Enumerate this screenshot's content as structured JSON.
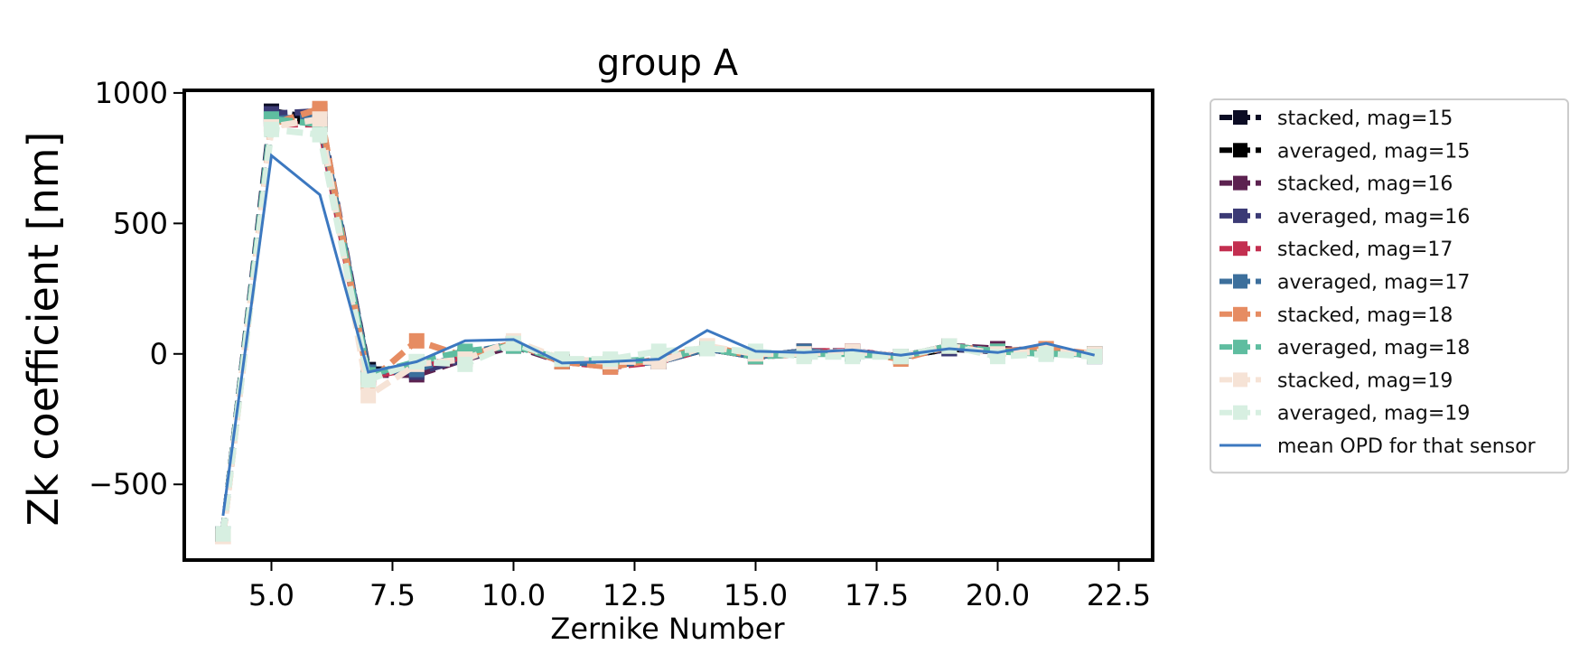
{
  "chart_data": {
    "type": "line",
    "title": "group A",
    "xlabel": "Zernike Number",
    "ylabel": "Zk coefficient [nm]",
    "xlim": [
      3.2,
      23.2
    ],
    "ylim": [
      -790,
      1010
    ],
    "xticks": [
      5.0,
      7.5,
      10.0,
      12.5,
      15.0,
      17.5,
      20.0,
      22.5
    ],
    "xtick_labels": [
      "5.0",
      "7.5",
      "10.0",
      "12.5",
      "15.0",
      "17.5",
      "20.0",
      "22.5"
    ],
    "yticks": [
      1000,
      500,
      0,
      -500
    ],
    "ytick_labels": [
      "1000",
      "500",
      "0",
      "−500"
    ],
    "grid": false,
    "legend_position": "outside-right",
    "x": [
      4,
      5,
      6,
      7,
      8,
      9,
      10,
      11,
      12,
      13,
      14,
      15,
      16,
      17,
      18,
      19,
      20,
      21,
      22
    ],
    "series": [
      {
        "name": "stacked, mag=15",
        "color": "#0b0c24",
        "style": "dashed-square",
        "values": [
          -690,
          930,
          900,
          -60,
          -60,
          -10,
          40,
          -30,
          -40,
          -30,
          20,
          -10,
          10,
          0,
          -10,
          20,
          10,
          10,
          0
        ]
      },
      {
        "name": "averaged, mag=15",
        "color": "#000000",
        "style": "dashed-square",
        "values": [
          -690,
          910,
          880,
          -70,
          -60,
          -10,
          40,
          -30,
          -40,
          -30,
          20,
          -10,
          10,
          0,
          -10,
          20,
          10,
          10,
          0
        ]
      },
      {
        "name": "stacked, mag=16",
        "color": "#5c2250",
        "style": "dashed-square",
        "values": [
          -690,
          900,
          890,
          -80,
          -80,
          -20,
          30,
          -30,
          -40,
          -30,
          20,
          -10,
          10,
          10,
          -10,
          30,
          20,
          10,
          0
        ]
      },
      {
        "name": "averaged, mag=16",
        "color": "#3b3a75",
        "style": "dashed-square",
        "values": [
          -690,
          920,
          930,
          -70,
          -70,
          -20,
          40,
          -30,
          -40,
          -30,
          20,
          -10,
          0,
          10,
          -10,
          20,
          10,
          20,
          -10
        ]
      },
      {
        "name": "stacked, mag=17",
        "color": "#c32f50",
        "style": "dashed-square",
        "values": [
          -690,
          880,
          880,
          -90,
          -50,
          -10,
          40,
          -30,
          -50,
          -30,
          20,
          -10,
          10,
          10,
          -10,
          30,
          10,
          10,
          0
        ]
      },
      {
        "name": "averaged, mag=17",
        "color": "#3c6f9c",
        "style": "dashed-square",
        "values": [
          -690,
          900,
          910,
          -70,
          -60,
          0,
          40,
          -30,
          -40,
          -30,
          20,
          -10,
          10,
          0,
          -10,
          30,
          10,
          10,
          0
        ]
      },
      {
        "name": "stacked, mag=18",
        "color": "#e68c62",
        "style": "dashed-square",
        "values": [
          -700,
          880,
          940,
          -110,
          50,
          -10,
          40,
          -30,
          -50,
          -20,
          30,
          -10,
          0,
          10,
          -20,
          30,
          10,
          20,
          0
        ]
      },
      {
        "name": "averaged, mag=18",
        "color": "#5fbda0",
        "style": "dashed-square",
        "values": [
          -690,
          900,
          880,
          -80,
          -30,
          10,
          30,
          -20,
          -30,
          -20,
          20,
          -10,
          0,
          0,
          -10,
          30,
          10,
          0,
          0
        ]
      },
      {
        "name": "stacked, mag=19",
        "color": "#f6e3d6",
        "style": "dashed-square",
        "values": [
          -700,
          870,
          900,
          -160,
          -40,
          -20,
          50,
          -20,
          -30,
          -30,
          30,
          0,
          0,
          10,
          -10,
          30,
          0,
          10,
          0
        ]
      },
      {
        "name": "averaged, mag=19",
        "color": "#d7efe1",
        "style": "dashed-square",
        "values": [
          -690,
          860,
          840,
          -100,
          -30,
          -40,
          40,
          -20,
          -20,
          10,
          20,
          10,
          -10,
          -10,
          -10,
          30,
          -10,
          0,
          -10
        ]
      },
      {
        "name": "mean OPD for that sensor",
        "color": "#3c78c0",
        "style": "solid",
        "values": [
          -620,
          760,
          610,
          -70,
          -30,
          50,
          55,
          -35,
          -30,
          -20,
          90,
          10,
          5,
          15,
          -5,
          20,
          5,
          40,
          -5
        ]
      }
    ]
  }
}
